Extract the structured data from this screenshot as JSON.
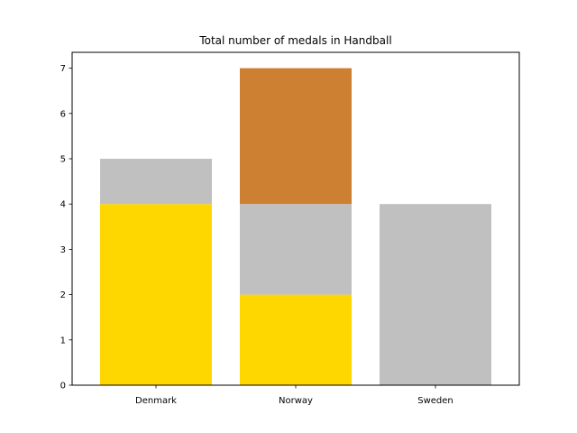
{
  "chart_data": {
    "type": "bar",
    "stacked": true,
    "title": "Total number of medals in Handball",
    "xlabel": "",
    "ylabel": "",
    "categories": [
      "Denmark",
      "Norway",
      "Sweden"
    ],
    "series": [
      {
        "color": "#ffd700",
        "values": [
          4,
          2,
          0
        ]
      },
      {
        "color": "#c0c0c0",
        "values": [
          1,
          2,
          4
        ]
      },
      {
        "color": "#cd7f32",
        "values": [
          0,
          3,
          0
        ]
      }
    ],
    "ylim": [
      0,
      7.35
    ],
    "yticks": [
      0,
      1,
      2,
      3,
      4,
      5,
      6,
      7
    ],
    "grid": false,
    "legend": "none"
  }
}
